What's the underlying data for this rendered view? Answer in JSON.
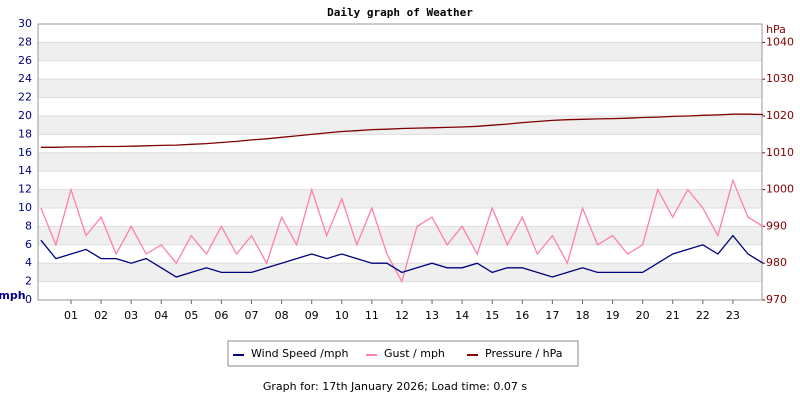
{
  "chart_data": {
    "type": "line",
    "title": "Daily graph of Weather",
    "ylabel": "mph",
    "y2label": "hPa",
    "footer": "Graph for: 17th January 2026; Load time: 0.07 s",
    "x": [
      0,
      0.5,
      1,
      1.5,
      2,
      2.5,
      3,
      3.5,
      4,
      4.5,
      5,
      5.5,
      6,
      6.5,
      7,
      7.5,
      8,
      8.5,
      9,
      9.5,
      10,
      10.5,
      11,
      11.5,
      12,
      12.5,
      13,
      13.5,
      14,
      14.5,
      15,
      15.5,
      16,
      16.5,
      17,
      17.5,
      18,
      18.5,
      19,
      19.5,
      20,
      20.5,
      21,
      21.5,
      22,
      22.5,
      23,
      23.5,
      24
    ],
    "xlim": [
      0,
      24
    ],
    "xticks": [
      {
        "value": 1,
        "label": "01"
      },
      {
        "value": 2,
        "label": "02"
      },
      {
        "value": 3,
        "label": "03"
      },
      {
        "value": 4,
        "label": "04"
      },
      {
        "value": 5,
        "label": "05"
      },
      {
        "value": 6,
        "label": "06"
      },
      {
        "value": 7,
        "label": "07"
      },
      {
        "value": 8,
        "label": "08"
      },
      {
        "value": 9,
        "label": "09"
      },
      {
        "value": 10,
        "label": "10"
      },
      {
        "value": 11,
        "label": "11"
      },
      {
        "value": 12,
        "label": "12"
      },
      {
        "value": 13,
        "label": "13"
      },
      {
        "value": 14,
        "label": "14"
      },
      {
        "value": 15,
        "label": "15"
      },
      {
        "value": 16,
        "label": "16"
      },
      {
        "value": 17,
        "label": "17"
      },
      {
        "value": 18,
        "label": "18"
      },
      {
        "value": 19,
        "label": "19"
      },
      {
        "value": 20,
        "label": "20"
      },
      {
        "value": 21,
        "label": "21"
      },
      {
        "value": 22,
        "label": "22"
      },
      {
        "value": 23,
        "label": "23"
      }
    ],
    "ylim": [
      0,
      30
    ],
    "yticks": [
      0,
      2,
      4,
      6,
      8,
      10,
      12,
      14,
      16,
      18,
      20,
      22,
      24,
      26,
      28,
      30
    ],
    "y2lim": [
      970,
      1045
    ],
    "y2ticks": [
      970,
      980,
      990,
      1000,
      1010,
      1020,
      1030,
      1040
    ],
    "grid": true,
    "legend": "bottom",
    "series": [
      {
        "name": "Wind Speed /mph",
        "color": "#000080",
        "values": [
          6.5,
          4.5,
          5,
          5.5,
          4.5,
          4.5,
          4,
          4.5,
          3.5,
          2.5,
          3,
          3.5,
          3,
          3,
          3,
          3.5,
          4,
          4.5,
          5,
          4.5,
          5,
          4.5,
          4,
          4,
          3,
          3.5,
          4,
          3.5,
          3.5,
          4,
          3,
          3.5,
          3.5,
          3,
          2.5,
          3,
          3.5,
          3,
          3,
          3,
          3,
          4,
          5,
          5.5,
          6,
          5,
          7,
          5,
          4
        ]
      },
      {
        "name": "Gust / mph",
        "color": "#ff80a8",
        "values": [
          10,
          6,
          12,
          7,
          9,
          5,
          8,
          5,
          6,
          4,
          7,
          5,
          8,
          5,
          7,
          4,
          9,
          6,
          12,
          7,
          11,
          6,
          10,
          5,
          2,
          8,
          9,
          6,
          8,
          5,
          10,
          6,
          9,
          5,
          7,
          4,
          10,
          6,
          7,
          5,
          6,
          12,
          9,
          12,
          10,
          7,
          13,
          9,
          8
        ]
      },
      {
        "name": "Pressure / hPa",
        "color": "#800000",
        "axis": "y2",
        "values": [
          1011.5,
          1011.5,
          1011.6,
          1011.6,
          1011.7,
          1011.7,
          1011.8,
          1011.9,
          1012,
          1012.1,
          1012.3,
          1012.5,
          1012.8,
          1013.1,
          1013.5,
          1013.8,
          1014.2,
          1014.6,
          1015,
          1015.4,
          1015.8,
          1016,
          1016.3,
          1016.4,
          1016.6,
          1016.7,
          1016.8,
          1016.9,
          1017,
          1017.2,
          1017.5,
          1017.8,
          1018.2,
          1018.5,
          1018.8,
          1019,
          1019.1,
          1019.2,
          1019.3,
          1019.4,
          1019.6,
          1019.7,
          1019.9,
          1020,
          1020.2,
          1020.3,
          1020.5,
          1020.5,
          1020.4
        ]
      }
    ]
  }
}
